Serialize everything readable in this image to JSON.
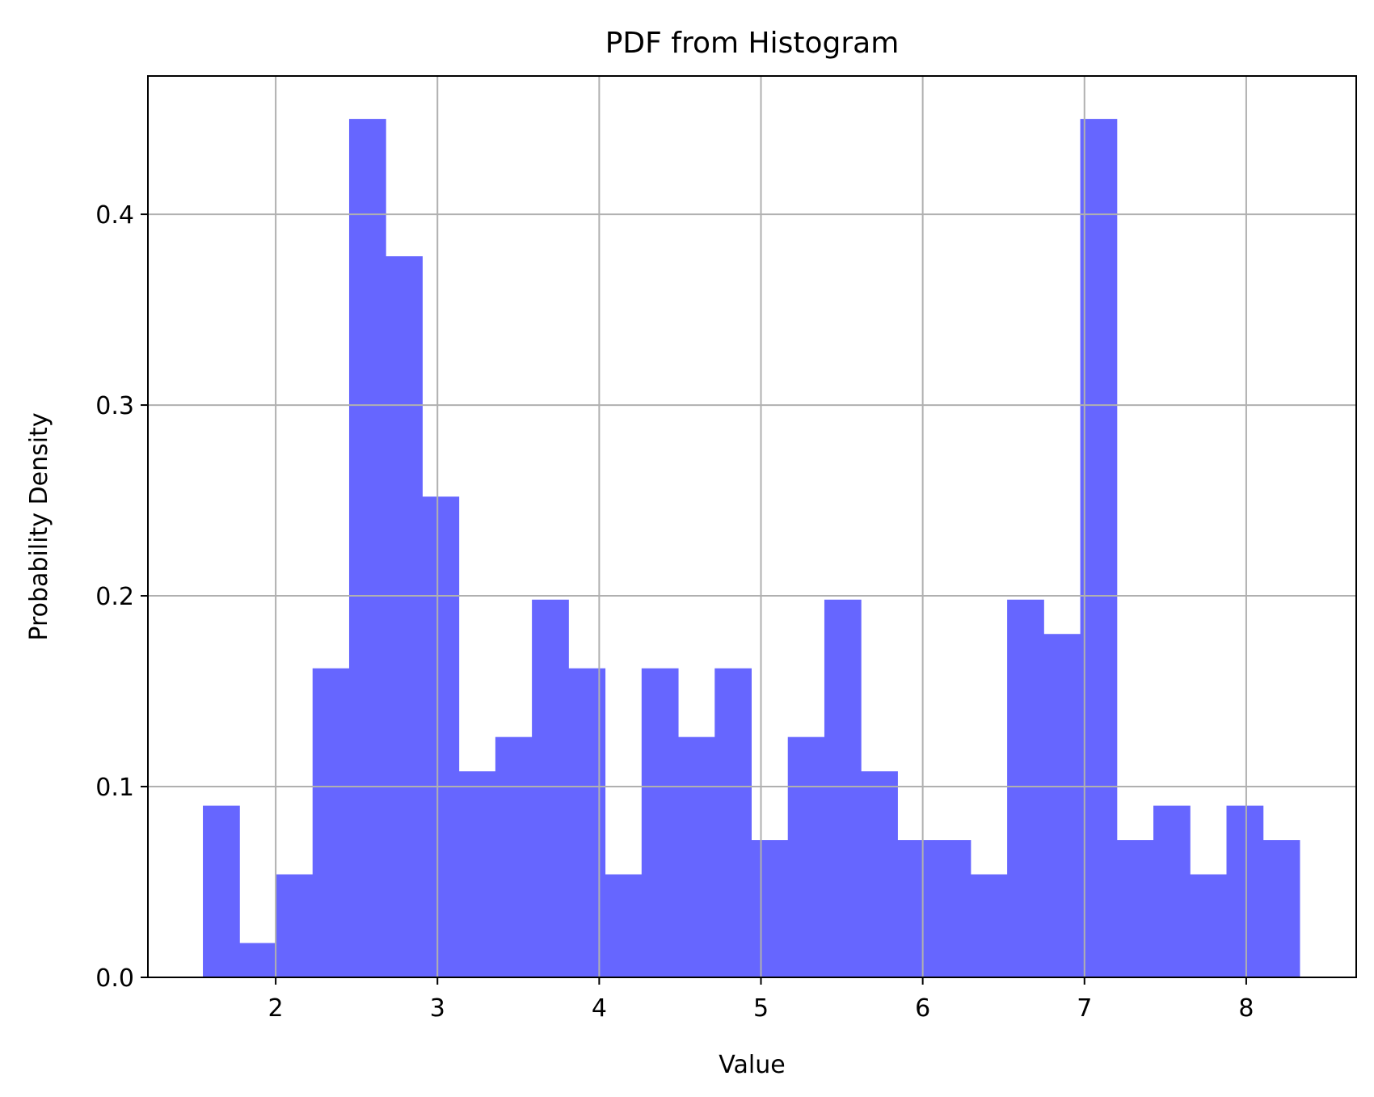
{
  "chart_data": {
    "type": "bar",
    "title": "PDF from Histogram",
    "xlabel": "Value",
    "ylabel": "Probability Density",
    "xlim": [
      1.21,
      8.68
    ],
    "ylim": [
      0,
      0.4725
    ],
    "xticks": [
      2,
      3,
      4,
      5,
      6,
      7,
      8
    ],
    "yticks": [
      0.0,
      0.1,
      0.2,
      0.3,
      0.4
    ],
    "ytick_labels": [
      "0.0",
      "0.1",
      "0.2",
      "0.3",
      "0.4"
    ],
    "grid": true,
    "bar_color": "#6666ff",
    "bin_edges": [
      1.55,
      1.776,
      2.002,
      2.228,
      2.454,
      2.68,
      2.906,
      3.132,
      3.358,
      3.584,
      3.81,
      4.036,
      4.262,
      4.488,
      4.714,
      4.94,
      5.166,
      5.392,
      5.618,
      5.844,
      6.07,
      6.296,
      6.522,
      6.748,
      6.974,
      7.2,
      7.426,
      7.652,
      7.878,
      8.104,
      8.33
    ],
    "values": [
      0.09,
      0.018,
      0.054,
      0.162,
      0.45,
      0.378,
      0.252,
      0.108,
      0.126,
      0.198,
      0.162,
      0.054,
      0.162,
      0.126,
      0.162,
      0.072,
      0.126,
      0.198,
      0.108,
      0.072,
      0.072,
      0.054,
      0.198,
      0.18,
      0.45,
      0.072,
      0.09,
      0.054,
      0.09,
      0.072
    ]
  }
}
